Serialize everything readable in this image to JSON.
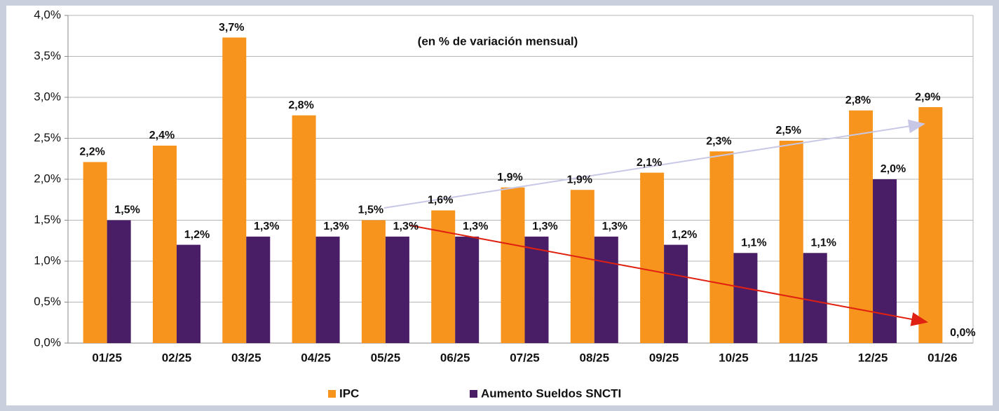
{
  "chart_data": {
    "type": "bar",
    "annotation": "(en % de variación mensual)",
    "categories": [
      "01/25",
      "02/25",
      "03/25",
      "04/25",
      "05/25",
      "06/25",
      "07/25",
      "08/25",
      "09/25",
      "10/25",
      "11/25",
      "12/25",
      "01/26"
    ],
    "series": [
      {
        "name": "IPC",
        "color": "#f7941d",
        "values": [
          2.21,
          2.41,
          3.73,
          2.78,
          1.5,
          1.62,
          1.9,
          1.87,
          2.08,
          2.34,
          2.47,
          2.84,
          2.88
        ],
        "value_labels": [
          "2,2%",
          "2,4%",
          "3,7%",
          "2,8%",
          "1,5%",
          "1,6%",
          "1,9%",
          "1,9%",
          "2,1%",
          "2,3%",
          "2,5%",
          "2,8%",
          "2,9%"
        ]
      },
      {
        "name": "Aumento Sueldos SNCTI",
        "color": "#4a1e66",
        "values": [
          1.5,
          1.2,
          1.3,
          1.3,
          1.3,
          1.3,
          1.3,
          1.3,
          1.2,
          1.1,
          1.1,
          2.0,
          0.0
        ],
        "value_labels": [
          "1,5%",
          "1,2%",
          "1,3%",
          "1,3%",
          "1,3%",
          "1,3%",
          "1,3%",
          "1,3%",
          "1,2%",
          "1,1%",
          "1,1%",
          "2,0%",
          "0,0%"
        ]
      }
    ],
    "ylim": [
      0,
      4
    ],
    "yticks": [
      {
        "value": 0,
        "label": "0,0%"
      },
      {
        "value": 0.5,
        "label": "0,5%"
      },
      {
        "value": 1,
        "label": "1,0%"
      },
      {
        "value": 1.5,
        "label": "1,5%"
      },
      {
        "value": 2,
        "label": "2,0%"
      },
      {
        "value": 2.5,
        "label": "2,5%"
      },
      {
        "value": 3,
        "label": "3,0%"
      },
      {
        "value": 3.5,
        "label": "3,5%"
      },
      {
        "value": 4,
        "label": "4,0%"
      }
    ],
    "grid": true
  }
}
